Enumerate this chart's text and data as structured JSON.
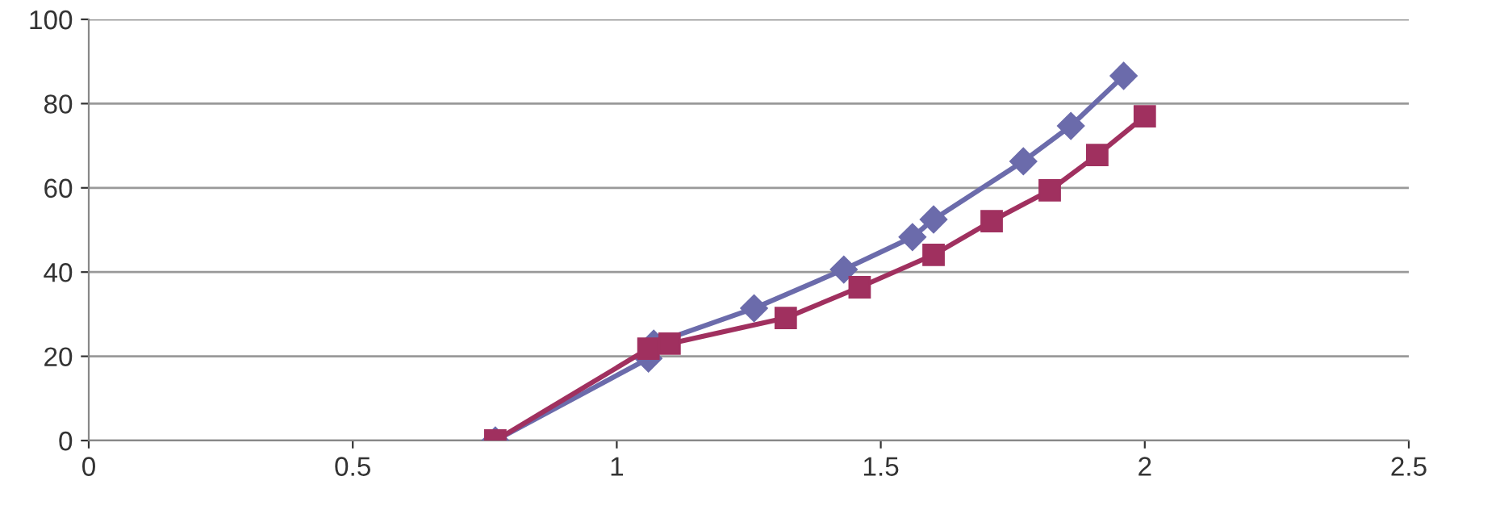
{
  "chart_data": {
    "type": "line",
    "xlim": [
      0,
      2.5
    ],
    "xticks": [
      0,
      0.5,
      1,
      1.5,
      2,
      2.5
    ],
    "ylim": [
      0,
      100
    ],
    "yticks": [
      0,
      20,
      40,
      60,
      80,
      100
    ],
    "grid": "y",
    "series": [
      {
        "color": "#6b6bab",
        "marker": "diamond",
        "x": [
          0.77,
          1.06,
          1.07,
          1.26,
          1.43,
          1.56,
          1.6,
          1.77,
          1.86,
          1.96
        ],
        "values": [
          0,
          19.5,
          23,
          31.4,
          40.6,
          48.3,
          52.5,
          66.3,
          74.7,
          86.6
        ]
      },
      {
        "color": "#a0305f",
        "marker": "square",
        "x": [
          0.77,
          1.06,
          1.1,
          1.32,
          1.46,
          1.6,
          1.71,
          1.82,
          1.91,
          2.0
        ],
        "values": [
          0,
          21.8,
          23,
          29.1,
          36.4,
          44.1,
          52.1,
          59.4,
          67.8,
          77.0
        ]
      }
    ]
  }
}
